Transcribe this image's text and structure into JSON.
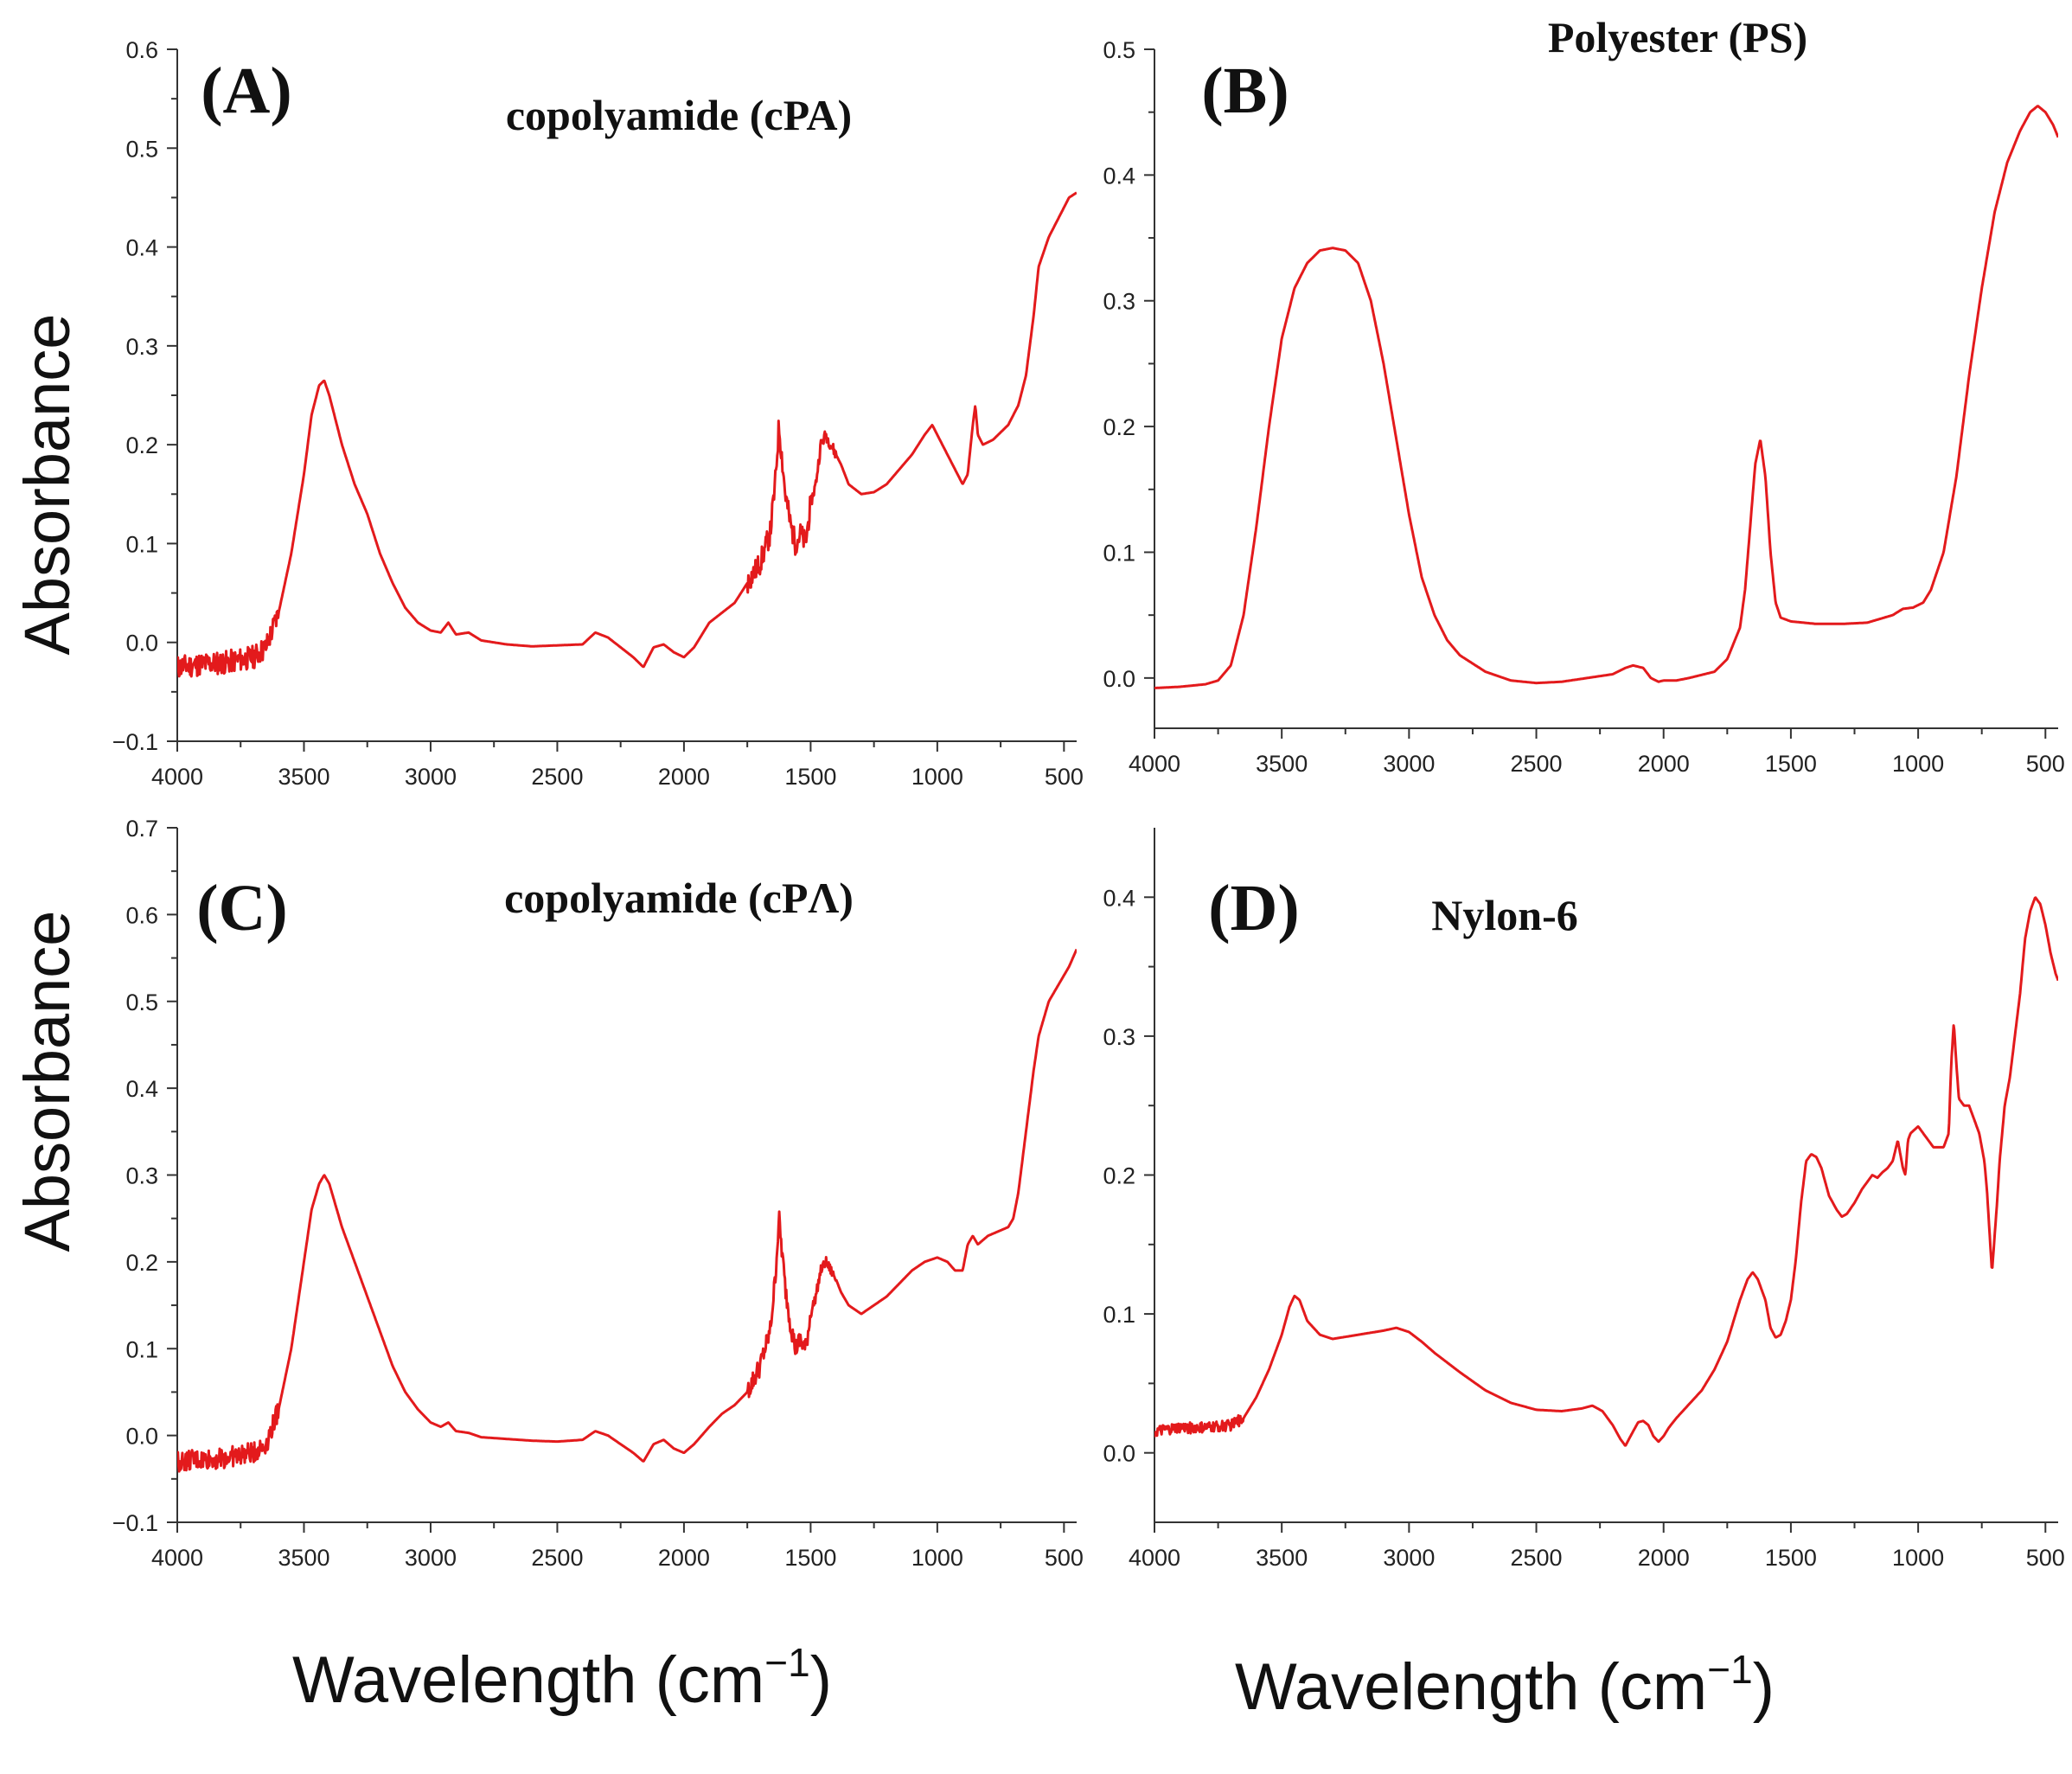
{
  "colors": {
    "spectrum": "#e31a1c",
    "axis": "#333333"
  },
  "labels": {
    "y_title": "Absorbance",
    "x_title_main": "Wavelength (cm",
    "x_title_sup": "−1",
    "x_title_close": ")"
  },
  "chart_data": [
    {
      "type": "line",
      "panel": "(A)",
      "title": "copolyamide (cPA)",
      "xlabel": "Wavelength (cm−1)",
      "ylabel": "Absorbance",
      "xlim": [
        4000,
        450
      ],
      "ylim": [
        -0.1,
        0.6
      ],
      "x_ticks": [
        "4000",
        "3500",
        "3000",
        "2500",
        "2000",
        "1500",
        "1000",
        "500"
      ],
      "y_ticks": [
        "−0.1",
        "0.0",
        "0.1",
        "0.2",
        "0.3",
        "0.4",
        "0.5",
        "0.6"
      ],
      "noise_ranges": [
        [
          4000,
          3600,
          0.012
        ],
        [
          1750,
          1500,
          0.012
        ],
        [
          1500,
          1400,
          0.006
        ]
      ],
      "series": [
        {
          "name": "cPA",
          "x": [
            4000,
            3900,
            3800,
            3700,
            3650,
            3600,
            3550,
            3500,
            3470,
            3440,
            3420,
            3400,
            3350,
            3300,
            3250,
            3200,
            3150,
            3100,
            3050,
            3000,
            2960,
            2930,
            2900,
            2850,
            2800,
            2700,
            2600,
            2500,
            2400,
            2350,
            2300,
            2250,
            2200,
            2160,
            2120,
            2080,
            2040,
            2000,
            1960,
            1900,
            1850,
            1800,
            1750,
            1700,
            1660,
            1640,
            1625,
            1600,
            1580,
            1560,
            1540,
            1520,
            1500,
            1480,
            1460,
            1440,
            1420,
            1400,
            1380,
            1350,
            1300,
            1250,
            1200,
            1150,
            1100,
            1050,
            1020,
            1000,
            950,
            900,
            880,
            860,
            850,
            840,
            820,
            780,
            740,
            720,
            700,
            680,
            650,
            620,
            600,
            560,
            520,
            480,
            450
          ],
          "y": [
            -0.025,
            -0.022,
            -0.02,
            -0.015,
            -0.005,
            0.03,
            0.09,
            0.17,
            0.23,
            0.26,
            0.265,
            0.25,
            0.2,
            0.16,
            0.13,
            0.09,
            0.06,
            0.035,
            0.02,
            0.012,
            0.01,
            0.02,
            0.008,
            0.01,
            0.002,
            -0.002,
            -0.004,
            -0.003,
            -0.002,
            0.01,
            0.005,
            -0.005,
            -0.015,
            -0.025,
            -0.005,
            -0.002,
            -0.01,
            -0.015,
            -0.005,
            0.02,
            0.03,
            0.04,
            0.06,
            0.08,
            0.11,
            0.16,
            0.22,
            0.15,
            0.12,
            0.1,
            0.11,
            0.1,
            0.14,
            0.16,
            0.2,
            0.21,
            0.2,
            0.19,
            0.18,
            0.16,
            0.15,
            0.152,
            0.16,
            0.175,
            0.19,
            0.21,
            0.22,
            0.21,
            0.185,
            0.16,
            0.17,
            0.22,
            0.24,
            0.21,
            0.2,
            0.205,
            0.215,
            0.22,
            0.23,
            0.24,
            0.27,
            0.33,
            0.38,
            0.41,
            0.43,
            0.45,
            0.455
          ]
        }
      ]
    },
    {
      "type": "line",
      "panel": "(B)",
      "title": "Polyester (PS)",
      "xlabel": "Wavelength (cm−1)",
      "ylabel": "",
      "xlim": [
        4000,
        450
      ],
      "ylim": [
        -0.04,
        0.5
      ],
      "x_ticks": [
        "4000",
        "3500",
        "3000",
        "2500",
        "2000",
        "1500",
        "1000",
        "500"
      ],
      "y_ticks": [
        "0.0",
        "0.1",
        "0.2",
        "0.3",
        "0.4",
        "0.5"
      ],
      "noise_ranges": [],
      "series": [
        {
          "name": "PS",
          "x": [
            4000,
            3900,
            3800,
            3750,
            3700,
            3650,
            3600,
            3550,
            3500,
            3450,
            3400,
            3350,
            3300,
            3250,
            3200,
            3150,
            3100,
            3050,
            3000,
            2950,
            2900,
            2850,
            2800,
            2700,
            2600,
            2500,
            2400,
            2300,
            2200,
            2150,
            2120,
            2080,
            2050,
            2020,
            2000,
            1950,
            1900,
            1800,
            1750,
            1700,
            1680,
            1660,
            1640,
            1620,
            1600,
            1580,
            1560,
            1540,
            1500,
            1400,
            1300,
            1200,
            1100,
            1060,
            1020,
            980,
            950,
            900,
            850,
            800,
            750,
            700,
            650,
            600,
            560,
            530,
            500,
            470,
            450
          ],
          "y": [
            -0.008,
            -0.007,
            -0.005,
            -0.002,
            0.01,
            0.05,
            0.12,
            0.2,
            0.27,
            0.31,
            0.33,
            0.34,
            0.342,
            0.34,
            0.33,
            0.3,
            0.25,
            0.19,
            0.13,
            0.08,
            0.05,
            0.03,
            0.018,
            0.005,
            -0.002,
            -0.004,
            -0.003,
            0.0,
            0.003,
            0.008,
            0.01,
            0.008,
            0.0,
            -0.003,
            -0.002,
            -0.002,
            0.0,
            0.005,
            0.015,
            0.04,
            0.07,
            0.12,
            0.17,
            0.19,
            0.16,
            0.1,
            0.06,
            0.048,
            0.045,
            0.043,
            0.043,
            0.044,
            0.05,
            0.055,
            0.056,
            0.06,
            0.07,
            0.1,
            0.16,
            0.24,
            0.31,
            0.37,
            0.41,
            0.435,
            0.45,
            0.455,
            0.45,
            0.44,
            0.43
          ]
        }
      ]
    },
    {
      "type": "line",
      "panel": "(C)",
      "title": "copolyamide (cPΛ)",
      "xlabel": "Wavelength (cm−1)",
      "ylabel": "Absorbance",
      "xlim": [
        4000,
        450
      ],
      "ylim": [
        -0.1,
        0.7
      ],
      "x_ticks": [
        "4000",
        "3500",
        "3000",
        "2500",
        "2000",
        "1500",
        "1000",
        "500"
      ],
      "y_ticks": [
        "−0.1",
        "0.0",
        "0.1",
        "0.2",
        "0.3",
        "0.4",
        "0.5",
        "0.6",
        "0.7"
      ],
      "noise_ranges": [
        [
          4000,
          3600,
          0.012
        ],
        [
          1750,
          1500,
          0.012
        ],
        [
          1500,
          1400,
          0.006
        ]
      ],
      "series": [
        {
          "name": "cPA",
          "x": [
            4000,
            3900,
            3800,
            3700,
            3650,
            3600,
            3550,
            3500,
            3470,
            3440,
            3420,
            3400,
            3350,
            3300,
            3250,
            3200,
            3150,
            3100,
            3050,
            3000,
            2960,
            2930,
            2900,
            2850,
            2800,
            2700,
            2600,
            2500,
            2400,
            2350,
            2300,
            2250,
            2200,
            2160,
            2120,
            2080,
            2040,
            2000,
            1960,
            1900,
            1850,
            1800,
            1750,
            1700,
            1660,
            1640,
            1625,
            1600,
            1580,
            1560,
            1540,
            1520,
            1500,
            1480,
            1460,
            1440,
            1420,
            1400,
            1380,
            1350,
            1300,
            1250,
            1200,
            1150,
            1100,
            1050,
            1000,
            960,
            930,
            900,
            880,
            860,
            840,
            800,
            760,
            720,
            700,
            680,
            650,
            620,
            600,
            560,
            520,
            480,
            450
          ],
          "y": [
            -0.03,
            -0.028,
            -0.025,
            -0.02,
            -0.01,
            0.03,
            0.1,
            0.2,
            0.26,
            0.29,
            0.3,
            0.29,
            0.24,
            0.2,
            0.16,
            0.12,
            0.08,
            0.05,
            0.03,
            0.015,
            0.01,
            0.015,
            0.005,
            0.003,
            -0.002,
            -0.004,
            -0.006,
            -0.007,
            -0.005,
            0.005,
            0.0,
            -0.01,
            -0.02,
            -0.03,
            -0.01,
            -0.005,
            -0.015,
            -0.02,
            -0.01,
            0.01,
            0.025,
            0.035,
            0.05,
            0.08,
            0.12,
            0.18,
            0.25,
            0.17,
            0.13,
            0.1,
            0.11,
            0.1,
            0.14,
            0.16,
            0.19,
            0.2,
            0.19,
            0.18,
            0.165,
            0.15,
            0.14,
            0.15,
            0.16,
            0.175,
            0.19,
            0.2,
            0.205,
            0.2,
            0.19,
            0.19,
            0.22,
            0.23,
            0.22,
            0.23,
            0.235,
            0.24,
            0.25,
            0.28,
            0.35,
            0.42,
            0.46,
            0.5,
            0.52,
            0.54,
            0.56
          ]
        }
      ]
    },
    {
      "type": "line",
      "panel": "(D)",
      "title": "Nylon-6",
      "xlabel": "Wavelength (cm−1)",
      "ylabel": "",
      "xlim": [
        4000,
        450
      ],
      "ylim": [
        -0.05,
        0.45
      ],
      "x_ticks": [
        "4000",
        "3500",
        "3000",
        "2500",
        "2000",
        "1500",
        "1000",
        "500"
      ],
      "y_ticks": [
        "0.0",
        "0.1",
        "0.2",
        "0.3",
        "0.4"
      ],
      "noise_ranges": [
        [
          4000,
          3650,
          0.004
        ]
      ],
      "series": [
        {
          "name": "Nylon-6",
          "x": [
            4000,
            3900,
            3800,
            3700,
            3650,
            3600,
            3550,
            3500,
            3470,
            3450,
            3430,
            3400,
            3350,
            3300,
            3200,
            3100,
            3050,
            3000,
            2950,
            2900,
            2800,
            2700,
            2600,
            2500,
            2400,
            2320,
            2280,
            2240,
            2200,
            2170,
            2150,
            2130,
            2100,
            2080,
            2060,
            2040,
            2020,
            2000,
            1980,
            1950,
            1900,
            1850,
            1800,
            1750,
            1700,
            1670,
            1650,
            1630,
            1600,
            1580,
            1560,
            1540,
            1520,
            1500,
            1480,
            1460,
            1440,
            1420,
            1400,
            1380,
            1350,
            1320,
            1300,
            1280,
            1250,
            1220,
            1200,
            1180,
            1160,
            1140,
            1120,
            1100,
            1080,
            1070,
            1060,
            1050,
            1040,
            1030,
            1000,
            960,
            940,
            920,
            900,
            880,
            870,
            860,
            850,
            840,
            820,
            800,
            780,
            760,
            740,
            730,
            720,
            710,
            700,
            690,
            680,
            660,
            640,
            620,
            600,
            580,
            560,
            540,
            520,
            500,
            480,
            460,
            450
          ],
          "y": [
            0.015,
            0.018,
            0.018,
            0.02,
            0.025,
            0.04,
            0.06,
            0.085,
            0.105,
            0.113,
            0.11,
            0.095,
            0.085,
            0.082,
            0.085,
            0.088,
            0.09,
            0.087,
            0.08,
            0.072,
            0.058,
            0.045,
            0.036,
            0.031,
            0.03,
            0.032,
            0.034,
            0.03,
            0.02,
            0.01,
            0.005,
            0.012,
            0.022,
            0.023,
            0.02,
            0.012,
            0.008,
            0.012,
            0.018,
            0.025,
            0.035,
            0.045,
            0.06,
            0.08,
            0.11,
            0.125,
            0.13,
            0.125,
            0.11,
            0.09,
            0.083,
            0.085,
            0.095,
            0.11,
            0.14,
            0.18,
            0.21,
            0.215,
            0.213,
            0.205,
            0.185,
            0.175,
            0.17,
            0.172,
            0.18,
            0.19,
            0.195,
            0.2,
            0.198,
            0.202,
            0.205,
            0.21,
            0.225,
            0.215,
            0.205,
            0.2,
            0.225,
            0.23,
            0.235,
            0.225,
            0.22,
            0.22,
            0.22,
            0.23,
            0.28,
            0.31,
            0.28,
            0.255,
            0.25,
            0.25,
            0.24,
            0.23,
            0.21,
            0.19,
            0.16,
            0.13,
            0.155,
            0.18,
            0.21,
            0.25,
            0.27,
            0.3,
            0.33,
            0.37,
            0.39,
            0.4,
            0.395,
            0.38,
            0.36,
            0.345,
            0.34
          ]
        }
      ]
    }
  ]
}
